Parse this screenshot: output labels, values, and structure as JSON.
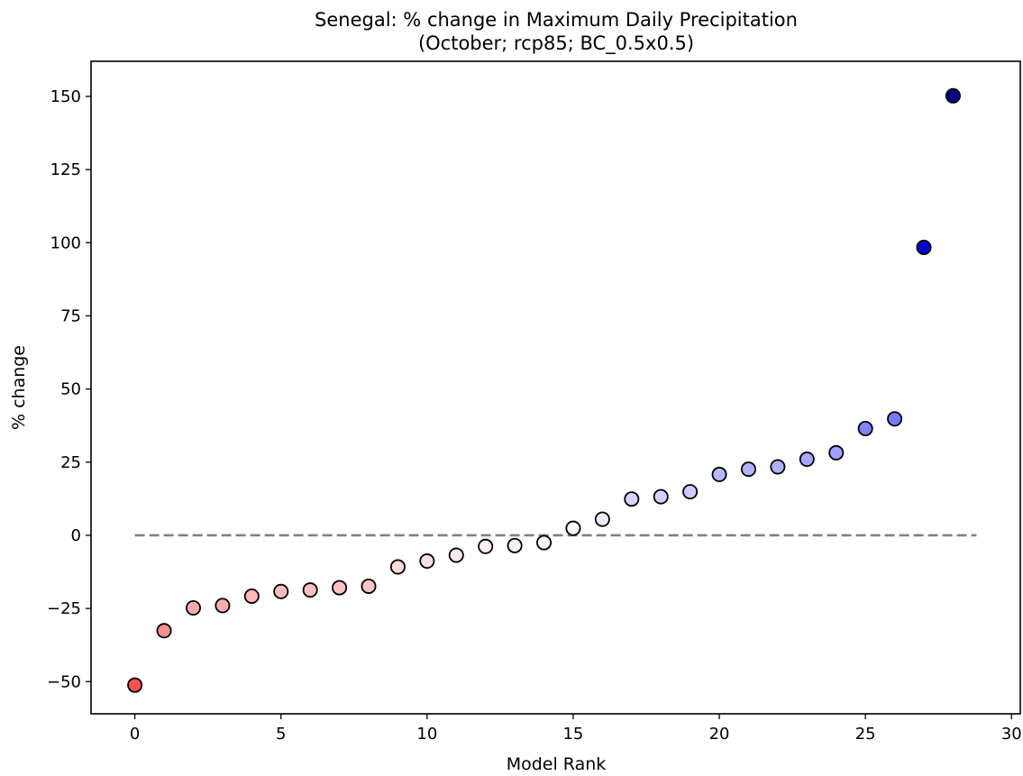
{
  "chart_data": {
    "type": "scatter",
    "title_line1": "Senegal: % change in Maximum Daily Precipitation",
    "title_line2": "(October; rcp85; BC_0.5x0.5)",
    "xlabel": "Model Rank",
    "ylabel": "% change",
    "xlim": [
      -1.5,
      30.3
    ],
    "ylim": [
      -61,
      162
    ],
    "xticks": [
      0,
      5,
      10,
      15,
      20,
      25,
      30
    ],
    "yticks": [
      -50,
      -25,
      0,
      25,
      50,
      75,
      100,
      125,
      150
    ],
    "grid": false,
    "colormap": "bwr_r",
    "reference_line": {
      "y": 0,
      "x_start": 0,
      "x_end": 28.8,
      "style": "dashed",
      "color": "#808080"
    },
    "points": [
      {
        "x": 0,
        "y": -51.2
      },
      {
        "x": 1,
        "y": -32.6
      },
      {
        "x": 2,
        "y": -24.8
      },
      {
        "x": 3,
        "y": -24.0
      },
      {
        "x": 4,
        "y": -20.8
      },
      {
        "x": 5,
        "y": -19.2
      },
      {
        "x": 6,
        "y": -18.7
      },
      {
        "x": 7,
        "y": -17.9
      },
      {
        "x": 8,
        "y": -17.4
      },
      {
        "x": 9,
        "y": -10.8
      },
      {
        "x": 10,
        "y": -8.8
      },
      {
        "x": 11,
        "y": -6.8
      },
      {
        "x": 12,
        "y": -3.8
      },
      {
        "x": 13,
        "y": -3.5
      },
      {
        "x": 14,
        "y": -2.5
      },
      {
        "x": 15,
        "y": 2.4
      },
      {
        "x": 16,
        "y": 5.5
      },
      {
        "x": 17,
        "y": 12.4
      },
      {
        "x": 18,
        "y": 13.2
      },
      {
        "x": 19,
        "y": 14.9
      },
      {
        "x": 20,
        "y": 20.8
      },
      {
        "x": 21,
        "y": 22.6
      },
      {
        "x": 22,
        "y": 23.4
      },
      {
        "x": 23,
        "y": 26.0
      },
      {
        "x": 24,
        "y": 28.2
      },
      {
        "x": 25,
        "y": 36.5
      },
      {
        "x": 26,
        "y": 39.8
      },
      {
        "x": 27,
        "y": 98.4
      },
      {
        "x": 28,
        "y": 150.2
      }
    ]
  }
}
